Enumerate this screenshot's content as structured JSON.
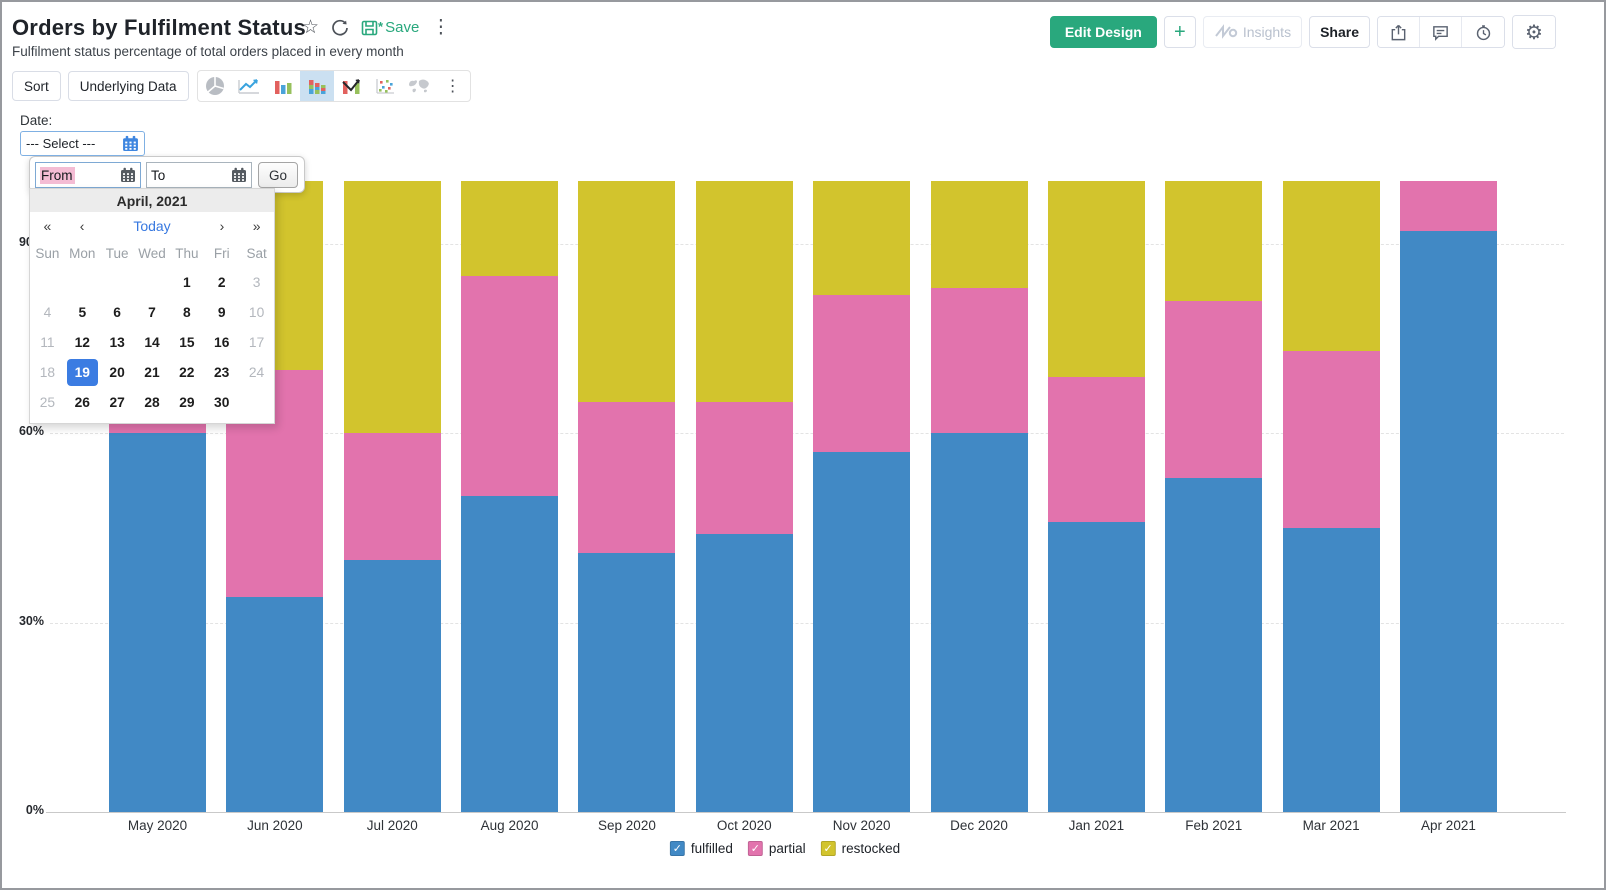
{
  "header": {
    "title": "Orders by Fulfilment Status",
    "subtitle": "Fulfilment status percentage of total orders placed in every month",
    "save_label": "Save",
    "unsaved_marker": "*",
    "actions": {
      "edit_design": "Edit Design",
      "add": "+",
      "insights": "Insights",
      "share": "Share"
    },
    "icon_names": [
      "star-icon",
      "refresh-icon",
      "save-icon",
      "kebab-menu-icon",
      "export-icon",
      "comment-icon",
      "alarm-icon",
      "gear-icon"
    ]
  },
  "toolbar": {
    "sort": "Sort",
    "underlying_data": "Underlying Data",
    "chart_types": [
      "pie-chart",
      "line-chart",
      "bar-chart",
      "stacked-bar-chart",
      "combo-chart",
      "scatter-chart",
      "map-chart",
      "more-chart-types"
    ],
    "active_chart_type": "stacked-bar-chart"
  },
  "filter": {
    "label": "Date:",
    "select_value": "--- Select ---"
  },
  "date_popup": {
    "from_value": "From",
    "to_value": "To",
    "go": "Go",
    "calendar": {
      "month_label": "April, 2021",
      "nav": {
        "prev_year": "«",
        "prev_month": "‹",
        "today": "Today",
        "next_month": "›",
        "next_year": "»"
      },
      "day_names": [
        "Sun",
        "Mon",
        "Tue",
        "Wed",
        "Thu",
        "Fri",
        "Sat"
      ],
      "weeks": [
        [
          "",
          "",
          "",
          "",
          "1",
          "2",
          "3"
        ],
        [
          "4",
          "5",
          "6",
          "7",
          "8",
          "9",
          "10"
        ],
        [
          "11",
          "12",
          "13",
          "14",
          "15",
          "16",
          "17"
        ],
        [
          "18",
          "19",
          "20",
          "21",
          "22",
          "23",
          "24"
        ],
        [
          "25",
          "26",
          "27",
          "28",
          "29",
          "30",
          ""
        ]
      ],
      "selected_day": "19",
      "disabled_days": [
        "3",
        "4",
        "10",
        "11",
        "17",
        "18",
        "24",
        "25"
      ]
    }
  },
  "chart_data": {
    "type": "bar",
    "subtype": "100-percent-stacked-column",
    "title": "Orders by Fulfilment Status",
    "categories": [
      "May 2020",
      "Jun 2020",
      "Jul 2020",
      "Aug 2020",
      "Sep 2020",
      "Oct 2020",
      "Nov 2020",
      "Dec 2020",
      "Jan 2021",
      "Feb 2021",
      "Mar 2021",
      "Apr 2021"
    ],
    "series": [
      {
        "name": "fulfilled",
        "color": "#4189c5",
        "values": [
          60,
          34,
          40,
          50,
          41,
          44,
          57,
          60,
          46,
          53,
          45,
          92
        ]
      },
      {
        "name": "partial",
        "color": "#e273ad",
        "values": [
          15,
          36,
          20,
          35,
          24,
          21,
          25,
          23,
          23,
          28,
          28,
          8
        ]
      },
      {
        "name": "restocked",
        "color": "#d2c42d",
        "values": [
          25,
          30,
          40,
          15,
          35,
          35,
          18,
          17,
          31,
          19,
          27,
          0
        ]
      }
    ],
    "stack_order_top_to_bottom": [
      "restocked",
      "partial",
      "fulfilled"
    ],
    "y_ticks": [
      {
        "label": "0%",
        "value": 0
      },
      {
        "label": "30%",
        "value": 30
      },
      {
        "label": "60%",
        "value": 60
      },
      {
        "label": "90%",
        "value": 90
      }
    ],
    "ylim": [
      0,
      100
    ],
    "grid": "dashed-horizontal",
    "legend_position": "bottom"
  }
}
